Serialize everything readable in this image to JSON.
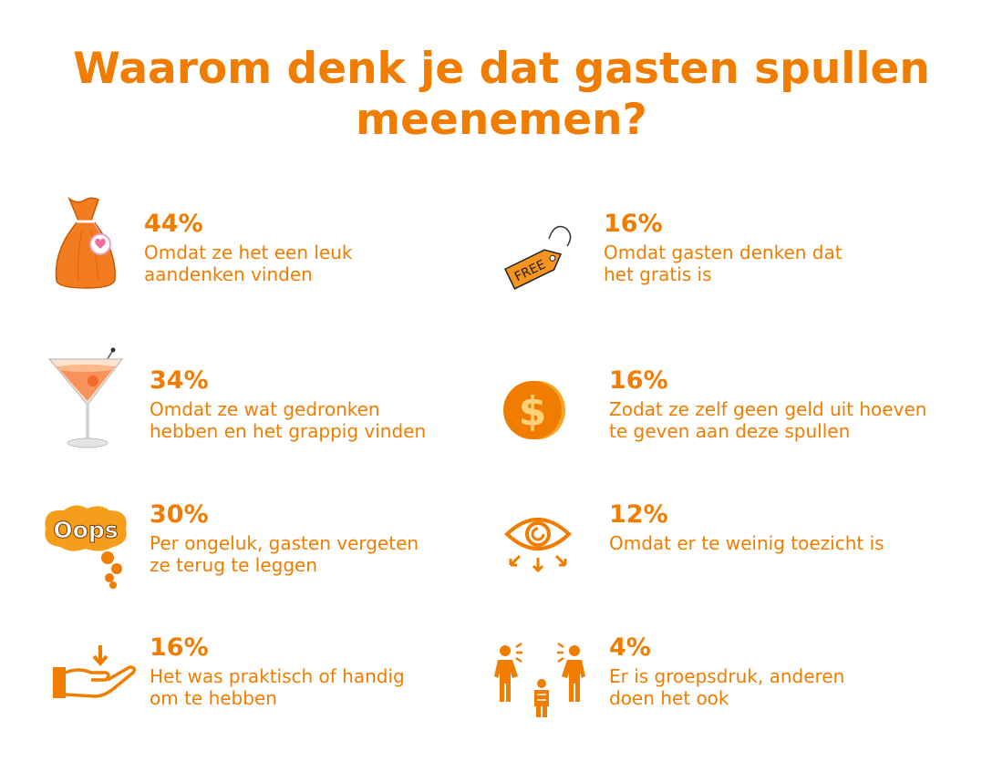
{
  "title": "Waarom denk je dat gasten spullen meenemen?",
  "accent_color": "#f07d00",
  "chart_data": {
    "type": "table",
    "title": "Waarom denk je dat gasten spullen meenemen?",
    "unit": "%",
    "rows": [
      {
        "value": 44,
        "label": "44%",
        "text": "Omdat ze het een leuk aandenken vinden",
        "lines": [
          "Omdat ze het een leuk",
          "aandenken vinden"
        ],
        "icon": "gift-bag-icon"
      },
      {
        "value": 16,
        "label": "16%",
        "text": "Omdat gasten denken dat het gratis is",
        "lines": [
          "Omdat gasten denken dat",
          "het gratis is"
        ],
        "icon": "free-tag-icon",
        "tag_text": "FREE"
      },
      {
        "value": 34,
        "label": "34%",
        "text": "Omdat ze wat gedronken hebben en het grappig vinden",
        "lines": [
          "Omdat ze wat gedronken",
          "hebben en het grappig vinden"
        ],
        "icon": "cocktail-glass-icon"
      },
      {
        "value": 16,
        "label": "16%",
        "text": "Zodat ze zelf geen geld uit hoeven te geven aan deze spullen",
        "lines": [
          "Zodat ze zelf geen geld uit hoeven",
          "te geven aan deze spullen"
        ],
        "icon": "dollar-coin-icon"
      },
      {
        "value": 30,
        "label": "30%",
        "text": "Per ongeluk, gasten vergeten ze terug te leggen",
        "lines": [
          "Per ongeluk, gasten vergeten",
          "ze terug te leggen"
        ],
        "icon": "oops-bubble-icon",
        "bubble_text": "Oops"
      },
      {
        "value": 12,
        "label": "12%",
        "text": "Omdat er te weinig toezicht is",
        "lines": [
          "Omdat er te weinig toezicht is"
        ],
        "icon": "eye-icon"
      },
      {
        "value": 16,
        "label": "16%",
        "text": "Het was praktisch of handig om te hebben",
        "lines": [
          "Het was praktisch of handig",
          "om te hebben"
        ],
        "icon": "hand-receive-icon"
      },
      {
        "value": 4,
        "label": "4%",
        "text": "Er is groepsdruk, anderen doen het ook",
        "lines": [
          "Er is groepsdruk, anderen",
          "doen het ook"
        ],
        "icon": "group-pressure-icon"
      }
    ]
  }
}
